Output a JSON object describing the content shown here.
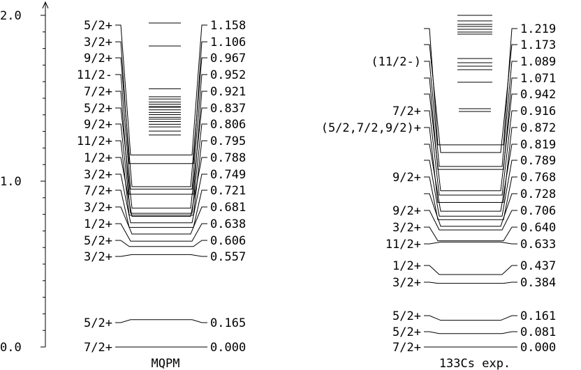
{
  "axis": {
    "ticks": [
      {
        "label": "0.0",
        "value": 0.0
      },
      {
        "label": "1.0",
        "value": 1.0
      },
      {
        "label": "2.0",
        "value": 2.0
      }
    ]
  },
  "left": {
    "title": "MQPM",
    "left_labels": [
      "7/2+",
      "5/2+",
      "3/2+",
      "5/2+",
      "1/2+",
      "3/2+",
      "7/2+",
      "3/2+",
      "1/2+",
      "11/2+",
      "9/2+",
      "5/2+",
      "7/2+",
      "11/2-",
      "9/2+",
      "3/2+",
      "5/2+"
    ],
    "right_values": [
      "0.000",
      "0.165",
      "0.557",
      "0.606",
      "0.638",
      "0.681",
      "0.721",
      "0.749",
      "0.788",
      "0.795",
      "0.806",
      "0.837",
      "0.921",
      "0.952",
      "0.967",
      "1.106",
      "1.158"
    ]
  },
  "right": {
    "title": "133Cs exp.",
    "left_labels": [
      "7/2+",
      "5/2+",
      "5/2+",
      "3/2+",
      "1/2+",
      "11/2+",
      "3/2+",
      "9/2+",
      "",
      "9/2+",
      "",
      "",
      "(5/2,7/2,9/2)+",
      "7/2+",
      "",
      "",
      "(11/2-)",
      "",
      ""
    ],
    "right_values": [
      "0.000",
      "0.081",
      "0.161",
      "0.384",
      "0.437",
      "0.633",
      "0.640",
      "0.706",
      "0.728",
      "0.768",
      "0.789",
      "0.819",
      "0.872",
      "0.916",
      "0.942",
      "1.071",
      "1.089",
      "1.173",
      "1.219"
    ]
  }
}
